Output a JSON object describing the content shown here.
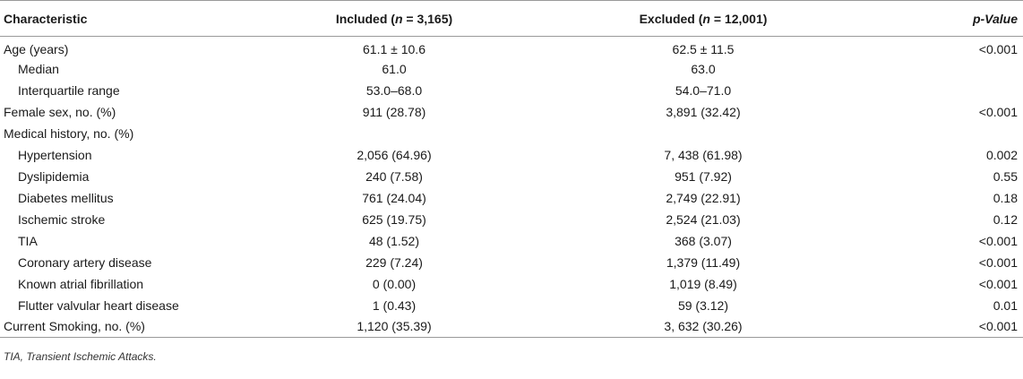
{
  "header": {
    "characteristic": "Characteristic",
    "included_prefix": "Included (",
    "included_n": "n",
    "included_suffix": " = 3,165)",
    "excluded_prefix": "Excluded (",
    "excluded_n": "n",
    "excluded_suffix": " = 12,001)",
    "p_value": "p-Value"
  },
  "rows": [
    {
      "label": "Age (years)",
      "indent": false,
      "included": "61.1 ± 10.6",
      "excluded": "62.5 ± 11.5",
      "p": "<0.001"
    },
    {
      "label": "Median",
      "indent": true,
      "included": "61.0",
      "excluded": "63.0",
      "p": ""
    },
    {
      "label": "Interquartile range",
      "indent": true,
      "included": "53.0–68.0",
      "excluded": "54.0–71.0",
      "p": ""
    },
    {
      "label": "Female sex, no. (%)",
      "indent": false,
      "included": "911 (28.78)",
      "excluded": "3,891 (32.42)",
      "p": "<0.001"
    },
    {
      "label": "Medical history, no. (%)",
      "indent": false,
      "included": "",
      "excluded": "",
      "p": ""
    },
    {
      "label": "Hypertension",
      "indent": true,
      "included": "2,056 (64.96)",
      "excluded": "7, 438 (61.98)",
      "p": "0.002"
    },
    {
      "label": "Dyslipidemia",
      "indent": true,
      "included": "240 (7.58)",
      "excluded": "951 (7.92)",
      "p": "0.55"
    },
    {
      "label": "Diabetes mellitus",
      "indent": true,
      "included": "761 (24.04)",
      "excluded": "2,749 (22.91)",
      "p": "0.18"
    },
    {
      "label": "Ischemic stroke",
      "indent": true,
      "included": "625 (19.75)",
      "excluded": "2,524 (21.03)",
      "p": "0.12"
    },
    {
      "label": "TIA",
      "indent": true,
      "included": "48 (1.52)",
      "excluded": "368 (3.07)",
      "p": "<0.001"
    },
    {
      "label": "Coronary artery disease",
      "indent": true,
      "included": "229 (7.24)",
      "excluded": "1,379 (11.49)",
      "p": "<0.001"
    },
    {
      "label": "Known atrial fibrillation",
      "indent": true,
      "included": "0 (0.00)",
      "excluded": "1,019 (8.49)",
      "p": "<0.001"
    },
    {
      "label": "Flutter valvular heart disease",
      "indent": true,
      "included": "1 (0.43)",
      "excluded": "59 (3.12)",
      "p": "0.01"
    },
    {
      "label": "Current Smoking, no. (%)",
      "indent": false,
      "included": "1,120 (35.39)",
      "excluded": "3, 632 (30.26)",
      "p": "<0.001"
    }
  ],
  "footnote": "TIA, Transient Ischemic Attacks."
}
